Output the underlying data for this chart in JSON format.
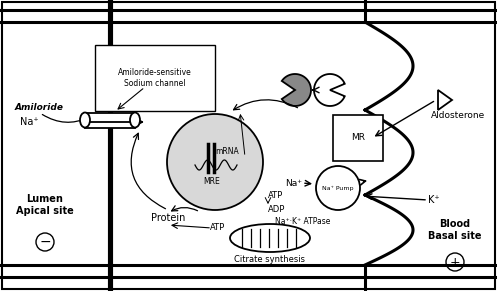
{
  "labels": {
    "amiloride": "Amiloride",
    "channel": "Amiloride-sensitive\nSodium channel",
    "na": "Na⁺",
    "protein": "Protein",
    "mrna": "mRNA",
    "mre": "MRE",
    "atp1": "ATP",
    "atp2": "ATP",
    "adp": "ADP",
    "na_pump": "Na⁺ Pump",
    "atpase": "Na⁺·K⁺ ATPase",
    "mr": "MR",
    "aldosterone": "Aldosterone",
    "k": "K⁺",
    "citrate": "Citrate synthesis",
    "lumen": "Lumen\nApical site",
    "blood": "Blood\nBasal site"
  }
}
